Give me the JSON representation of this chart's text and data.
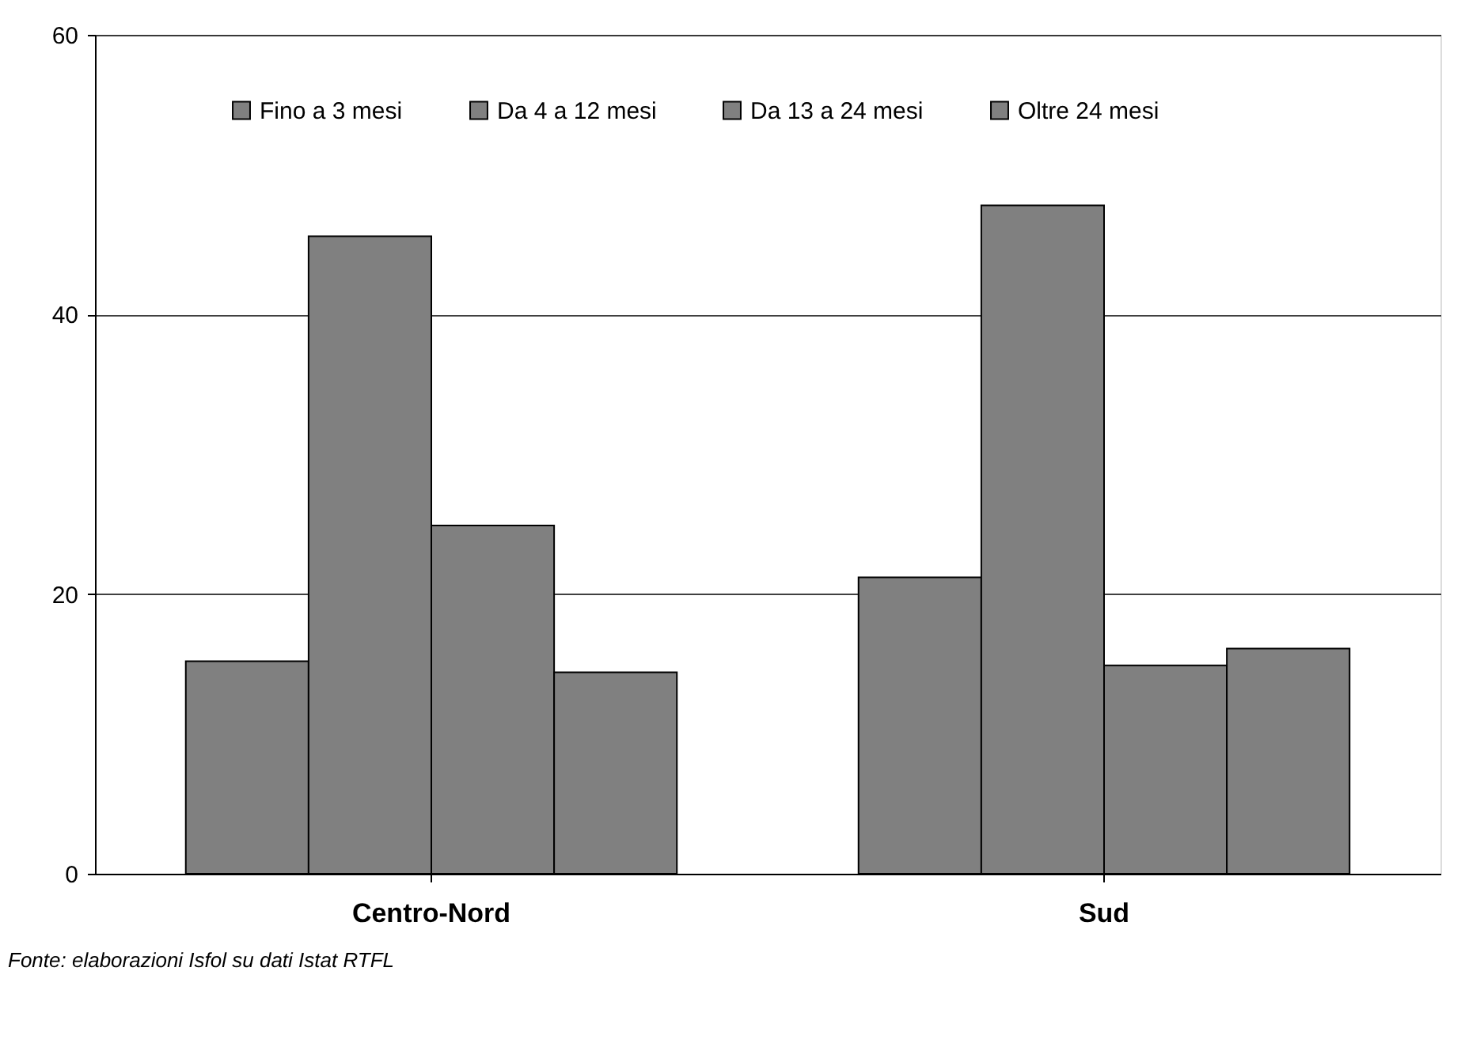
{
  "chart_data": {
    "type": "bar",
    "categories": [
      "Centro-Nord",
      "Sud"
    ],
    "series": [
      {
        "name": "Fino a 3 mesi",
        "color": "#808080",
        "values": [
          15.2,
          21.2
        ]
      },
      {
        "name": "Da 4 a 12 mesi",
        "color": "#808080",
        "values": [
          45.6,
          47.8
        ]
      },
      {
        "name": "Da 13 a 24 mesi",
        "color": "#808080",
        "values": [
          24.9,
          14.9
        ]
      },
      {
        "name": "Oltre 24 mesi",
        "color": "#808080",
        "values": [
          14.4,
          16.1
        ]
      }
    ],
    "ylim": [
      0,
      60
    ],
    "yticks": [
      0,
      20,
      40,
      60
    ],
    "grid": "y",
    "legend": "top",
    "annotations": [
      "Fonte: elaborazioni Isfol su dati Istat RTFL"
    ]
  }
}
